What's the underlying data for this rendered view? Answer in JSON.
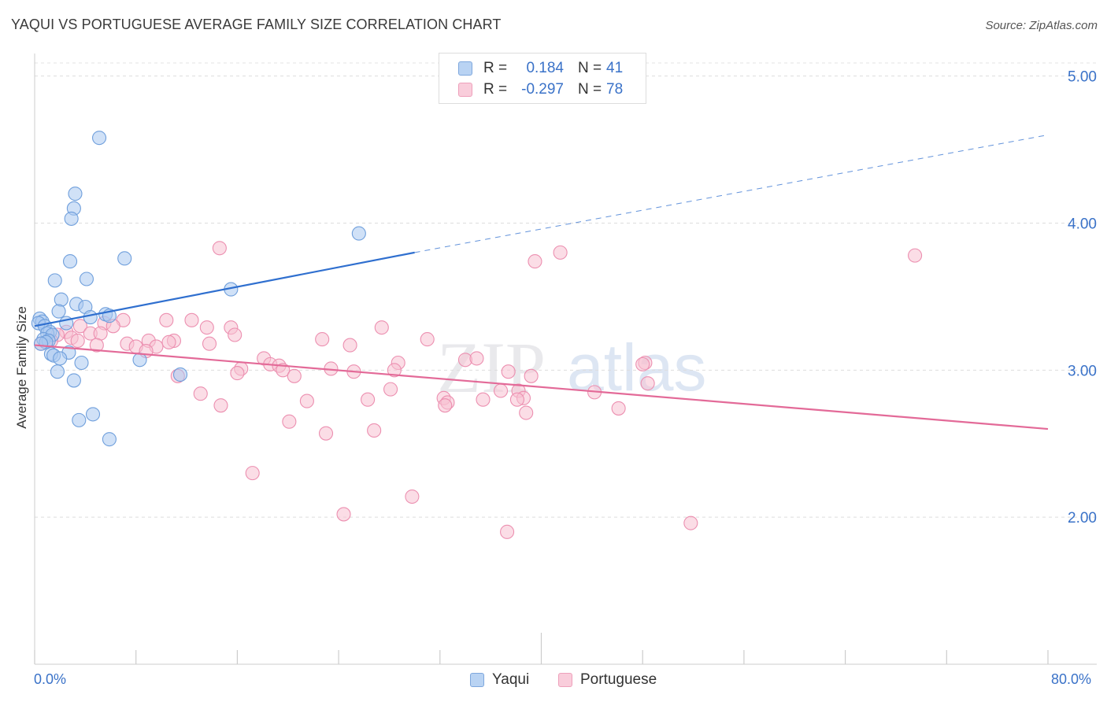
{
  "header": {
    "title": "YAQUI VS PORTUGUESE AVERAGE FAMILY SIZE CORRELATION CHART",
    "source": "Source: ZipAtlas.com"
  },
  "watermark": {
    "zip": "ZIP",
    "atlas": "atlas"
  },
  "legend": {
    "rows": [
      {
        "r_label": "R =",
        "r_value": "0.184",
        "n_label": "N =",
        "n_value": "41"
      },
      {
        "r_label": "R =",
        "r_value": "-0.297",
        "n_label": "N =",
        "n_value": "78"
      }
    ],
    "bottom": [
      {
        "label": "Yaqui"
      },
      {
        "label": "Portuguese"
      }
    ]
  },
  "colors": {
    "yaqui_fill": "#a9c8f0",
    "yaqui_stroke": "#6f9fdc",
    "yaqui_line": "#2f6fcf",
    "portuguese_fill": "#f7c1d2",
    "portuguese_stroke": "#ec8fb0",
    "portuguese_line": "#e36a98",
    "tick_label": "#3a72c8"
  },
  "chart_data": {
    "type": "scatter",
    "title": "YAQUI VS PORTUGUESE AVERAGE FAMILY SIZE CORRELATION CHART",
    "xlabel": "",
    "ylabel": "Average Family Size",
    "xlim": [
      0,
      80
    ],
    "ylim": [
      1.0,
      5.1
    ],
    "x_tick_labels": [
      "0.0%",
      "80.0%"
    ],
    "y_ticks": [
      2.0,
      3.0,
      4.0,
      5.0
    ],
    "y_tick_labels": [
      "2.00",
      "3.00",
      "4.00",
      "5.00"
    ],
    "grid": "horizontal-dashed",
    "legend_position": "top-center",
    "series": [
      {
        "name": "Yaqui",
        "R": 0.184,
        "N": 41,
        "trend": {
          "x0": 0,
          "y0": 3.3,
          "x1": 30,
          "y1": 3.8,
          "dashed_to_x": 80,
          "dashed_to_y": 4.6
        },
        "points": [
          [
            5.1,
            4.58
          ],
          [
            3.2,
            4.2
          ],
          [
            3.1,
            4.1
          ],
          [
            2.9,
            4.03
          ],
          [
            25.6,
            3.93
          ],
          [
            7.1,
            3.76
          ],
          [
            2.8,
            3.74
          ],
          [
            4.1,
            3.62
          ],
          [
            1.6,
            3.61
          ],
          [
            15.5,
            3.55
          ],
          [
            2.1,
            3.48
          ],
          [
            3.3,
            3.45
          ],
          [
            4.0,
            3.43
          ],
          [
            1.9,
            3.4
          ],
          [
            5.6,
            3.38
          ],
          [
            5.9,
            3.37
          ],
          [
            4.4,
            3.36
          ],
          [
            0.4,
            3.35
          ],
          [
            0.6,
            3.33
          ],
          [
            0.3,
            3.32
          ],
          [
            2.5,
            3.32
          ],
          [
            0.8,
            3.3
          ],
          [
            1.2,
            3.26
          ],
          [
            1.0,
            3.25
          ],
          [
            1.4,
            3.24
          ],
          [
            0.7,
            3.21
          ],
          [
            1.1,
            3.2
          ],
          [
            0.9,
            3.19
          ],
          [
            0.5,
            3.18
          ],
          [
            2.7,
            3.12
          ],
          [
            1.3,
            3.11
          ],
          [
            1.5,
            3.1
          ],
          [
            2.0,
            3.08
          ],
          [
            8.3,
            3.07
          ],
          [
            3.7,
            3.05
          ],
          [
            1.8,
            2.99
          ],
          [
            11.5,
            2.97
          ],
          [
            3.1,
            2.93
          ],
          [
            4.6,
            2.7
          ],
          [
            3.5,
            2.66
          ],
          [
            5.9,
            2.53
          ]
        ]
      },
      {
        "name": "Portuguese",
        "R": -0.297,
        "N": 78,
        "trend": {
          "x0": 0,
          "y0": 3.17,
          "x1": 80,
          "y1": 2.6
        },
        "points": [
          [
            14.6,
            3.83
          ],
          [
            39.5,
            3.74
          ],
          [
            41.5,
            3.8
          ],
          [
            69.5,
            3.78
          ],
          [
            10.4,
            3.34
          ],
          [
            12.4,
            3.34
          ],
          [
            7.0,
            3.34
          ],
          [
            5.5,
            3.32
          ],
          [
            3.6,
            3.3
          ],
          [
            6.2,
            3.3
          ],
          [
            13.6,
            3.29
          ],
          [
            15.5,
            3.29
          ],
          [
            27.4,
            3.29
          ],
          [
            2.5,
            3.26
          ],
          [
            4.4,
            3.25
          ],
          [
            5.2,
            3.25
          ],
          [
            1.8,
            3.24
          ],
          [
            15.8,
            3.24
          ],
          [
            2.9,
            3.22
          ],
          [
            1.3,
            3.2
          ],
          [
            3.4,
            3.2
          ],
          [
            9.0,
            3.2
          ],
          [
            11.0,
            3.2
          ],
          [
            22.7,
            3.21
          ],
          [
            31.0,
            3.21
          ],
          [
            0.9,
            3.19
          ],
          [
            7.3,
            3.18
          ],
          [
            8.0,
            3.16
          ],
          [
            9.6,
            3.16
          ],
          [
            10.6,
            3.19
          ],
          [
            13.8,
            3.18
          ],
          [
            24.9,
            3.17
          ],
          [
            4.9,
            3.17
          ],
          [
            0.5,
            3.18
          ],
          [
            8.8,
            3.13
          ],
          [
            18.1,
            3.08
          ],
          [
            18.6,
            3.04
          ],
          [
            19.3,
            3.03
          ],
          [
            28.7,
            3.05
          ],
          [
            34.0,
            3.07
          ],
          [
            34.9,
            3.08
          ],
          [
            19.6,
            3.0
          ],
          [
            23.4,
            3.01
          ],
          [
            28.4,
            3.0
          ],
          [
            16.3,
            3.01
          ],
          [
            16.0,
            2.98
          ],
          [
            20.5,
            2.96
          ],
          [
            25.2,
            2.99
          ],
          [
            37.4,
            2.99
          ],
          [
            39.2,
            2.96
          ],
          [
            48.2,
            3.05
          ],
          [
            48.0,
            3.04
          ],
          [
            48.4,
            2.91
          ],
          [
            11.3,
            2.96
          ],
          [
            36.8,
            2.86
          ],
          [
            38.2,
            2.86
          ],
          [
            28.1,
            2.87
          ],
          [
            32.3,
            2.81
          ],
          [
            32.6,
            2.78
          ],
          [
            21.5,
            2.79
          ],
          [
            26.3,
            2.8
          ],
          [
            35.4,
            2.8
          ],
          [
            38.6,
            2.81
          ],
          [
            44.2,
            2.85
          ],
          [
            13.1,
            2.84
          ],
          [
            14.7,
            2.76
          ],
          [
            32.4,
            2.76
          ],
          [
            38.1,
            2.8
          ],
          [
            46.1,
            2.74
          ],
          [
            38.8,
            2.71
          ],
          [
            20.1,
            2.65
          ],
          [
            23.0,
            2.57
          ],
          [
            26.8,
            2.59
          ],
          [
            17.2,
            2.3
          ],
          [
            29.8,
            2.14
          ],
          [
            24.4,
            2.02
          ],
          [
            37.3,
            1.9
          ],
          [
            51.8,
            1.96
          ]
        ]
      }
    ]
  }
}
